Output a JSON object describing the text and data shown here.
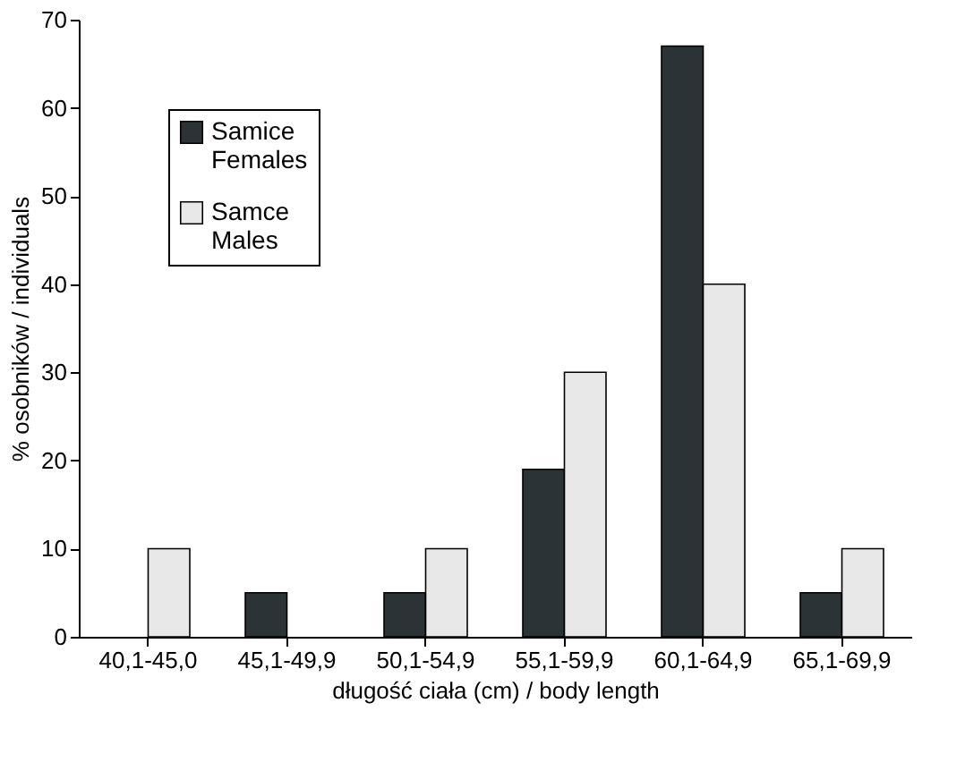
{
  "chart_data": {
    "type": "bar",
    "xlabel": "długość ciała (cm) / body length",
    "ylabel": "% osobników / individuals",
    "categories": [
      "40,1-45,0",
      "45,1-49,9",
      "50,1-54,9",
      "55,1-59,9",
      "60,1-64,9",
      "65,1-69,9"
    ],
    "series": [
      {
        "name": "Samice\nFemales",
        "color": "#2b3336",
        "values": [
          0,
          5,
          5,
          19,
          67,
          5
        ]
      },
      {
        "name": "Samce\nMales",
        "color": "#e8e8e8",
        "values": [
          10,
          0,
          10,
          30,
          40,
          10
        ]
      }
    ],
    "ylim": [
      0,
      70
    ],
    "yticks": [
      0,
      10,
      20,
      30,
      40,
      50,
      60,
      70
    ],
    "grid": false,
    "legend": "top left"
  }
}
